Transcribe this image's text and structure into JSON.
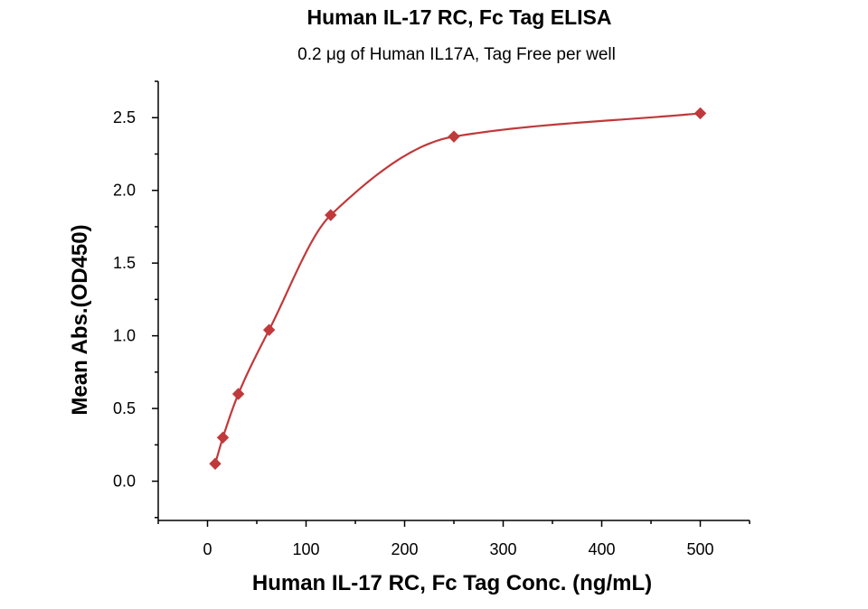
{
  "chart_data": {
    "type": "scatter",
    "title": "Human IL-17 RC, Fc Tag ELISA",
    "subtitle": "0.2 μg of Human IL17A, Tag Free per well",
    "xlabel": "Human IL-17 RC, Fc Tag Conc. (ng/mL)",
    "ylabel": "Mean Abs.(OD450)",
    "xlim": [
      -50,
      550
    ],
    "ylim": [
      -0.27,
      2.75
    ],
    "xticks": [
      0,
      100,
      200,
      300,
      400,
      500
    ],
    "yticks": [
      0.0,
      0.5,
      1.0,
      1.5,
      2.0,
      2.5
    ],
    "xtick_labels": [
      "0",
      "100",
      "200",
      "300",
      "400",
      "500"
    ],
    "ytick_labels": [
      "0.0",
      "0.5",
      "1.0",
      "1.5",
      "2.0",
      "2.5"
    ],
    "series": [
      {
        "x": [
          7.8,
          15.6,
          31.3,
          62.5,
          125,
          250,
          500
        ],
        "y": [
          0.12,
          0.3,
          0.6,
          1.04,
          1.83,
          2.37,
          2.53
        ],
        "marker": "diamond",
        "fit_line": true
      }
    ],
    "color": "#c0393b",
    "grid": false,
    "legend": false
  }
}
